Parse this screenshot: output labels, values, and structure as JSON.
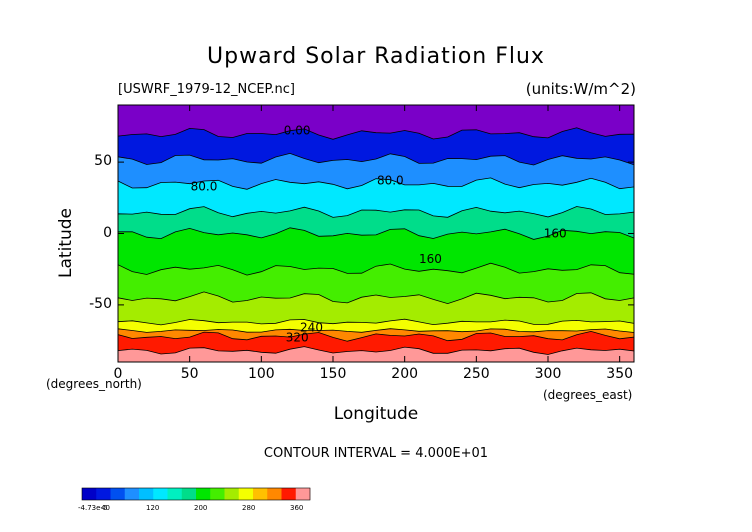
{
  "chart_data": {
    "type": "heatmap",
    "title": "Upward Solar Radiation Flux",
    "source_label": "[USWRF_1979-12_NCEP.nc]",
    "units_label": "(units:W/m^2)",
    "xlabel": "Longitude",
    "ylabel": "Latitude",
    "x_unit_label": "(degrees_east)",
    "y_unit_label": "(degrees_north)",
    "contour_interval_label": "CONTOUR INTERVAL = 4.000E+01",
    "xlim": [
      0,
      360
    ],
    "ylim": [
      -90,
      90
    ],
    "x_ticks": [
      "0",
      "50",
      "100",
      "150",
      "200",
      "250",
      "300",
      "350"
    ],
    "y_ticks": [
      "50",
      "0",
      "-50"
    ],
    "contour_labels": [
      {
        "text": "0.00",
        "x": 125,
        "y": 72
      },
      {
        "text": "80.0",
        "x": 60,
        "y": 33
      },
      {
        "text": "80.0",
        "x": 190,
        "y": 37
      },
      {
        "text": "160",
        "x": 305,
        "y": 0
      },
      {
        "text": "160",
        "x": 218,
        "y": -18
      },
      {
        "text": "240",
        "x": 135,
        "y": -66
      },
      {
        "text": "320",
        "x": 125,
        "y": -73
      }
    ],
    "bands": [
      {
        "lat_top": 90,
        "lat_bottom": 70,
        "value": 0,
        "color": "#7a00c8"
      },
      {
        "lat_top": 70,
        "lat_bottom": 52,
        "value": 20,
        "color": "#0018e0"
      },
      {
        "lat_top": 52,
        "lat_bottom": 35,
        "value": 60,
        "color": "#1e8fff"
      },
      {
        "lat_top": 35,
        "lat_bottom": 15,
        "value": 100,
        "color": "#00e8ff"
      },
      {
        "lat_top": 15,
        "lat_bottom": 0,
        "value": 140,
        "color": "#00dd8a"
      },
      {
        "lat_top": 0,
        "lat_bottom": -25,
        "value": 180,
        "color": "#00e600"
      },
      {
        "lat_top": -25,
        "lat_bottom": -45,
        "value": 180,
        "color": "#44ee00"
      },
      {
        "lat_top": -45,
        "lat_bottom": -62,
        "value": 220,
        "color": "#a4ec00"
      },
      {
        "lat_top": -62,
        "lat_bottom": -68,
        "value": 260,
        "color": "#f4ff00"
      },
      {
        "lat_top": -68,
        "lat_bottom": -72,
        "value": 280,
        "color": "#ff8800"
      },
      {
        "lat_top": -72,
        "lat_bottom": -82,
        "value": 320,
        "color": "#ff1a00"
      },
      {
        "lat_top": -82,
        "lat_bottom": -90,
        "value": 360,
        "color": "#ff9898"
      }
    ],
    "colorbar": {
      "colors": [
        "#0000c8",
        "#0018e0",
        "#0050f0",
        "#1e8fff",
        "#00bfff",
        "#00e8ff",
        "#00f0c0",
        "#00dd8a",
        "#00e600",
        "#44ee00",
        "#a4ec00",
        "#f4ff00",
        "#ffc000",
        "#ff8800",
        "#ff1a00",
        "#ff9898"
      ],
      "labels": [
        "-4.73e-5",
        "40",
        "120",
        "200",
        "280",
        "360"
      ]
    }
  }
}
